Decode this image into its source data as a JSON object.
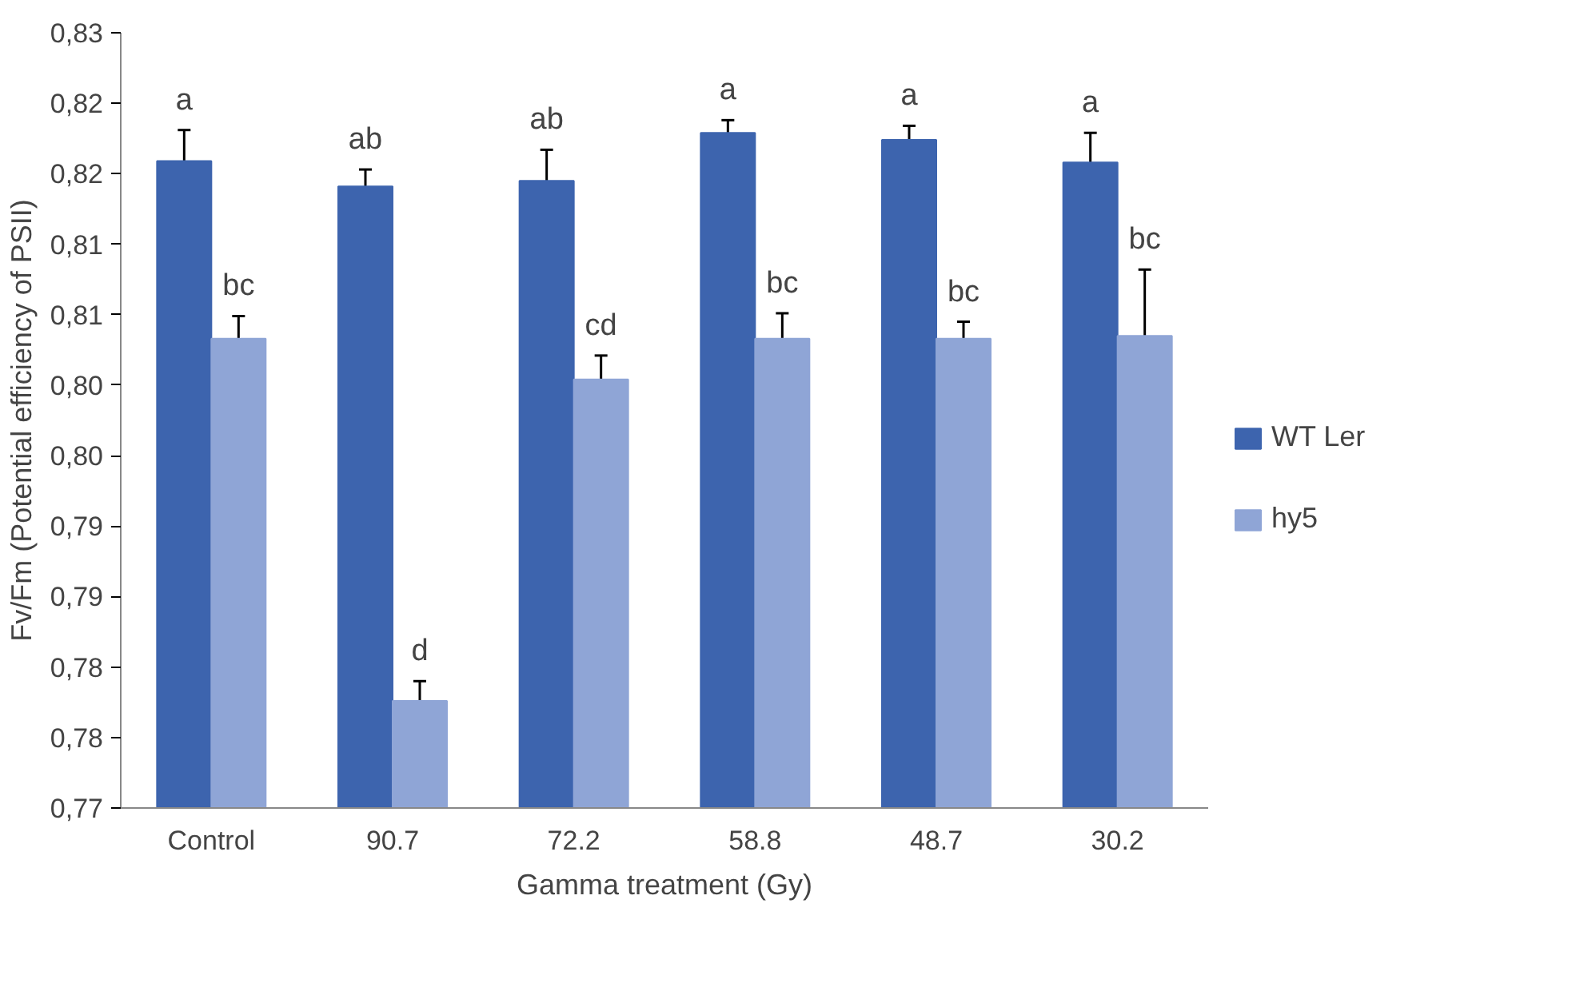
{
  "chart_data": {
    "type": "bar",
    "xlabel": "Gamma treatment (Gy)",
    "ylabel": "Fv/Fm (Potential efficiency of PSII)",
    "categories": [
      "Control",
      "90.7",
      "72.2",
      "58.8",
      "48.7",
      "30.2"
    ],
    "series": [
      {
        "name": "WT Ler",
        "color": "#3d64ae",
        "values": [
          0.8159,
          0.8141,
          0.8145,
          0.8179,
          0.8174,
          0.8158
        ],
        "errors": [
          0.0022,
          0.0012,
          0.0022,
          0.0009,
          0.001,
          0.0021
        ]
      },
      {
        "name": "hy5",
        "color": "#8fa5d6",
        "values": [
          0.8033,
          0.7776,
          0.8004,
          0.8033,
          0.8033,
          0.8035
        ],
        "errors": [
          0.0016,
          0.0014,
          0.0017,
          0.0018,
          0.0012,
          0.0047
        ]
      }
    ],
    "ylim": [
      0.77,
      0.825
    ],
    "yticks": [
      {
        "value": 0.77,
        "label": "0,77"
      },
      {
        "value": 0.775,
        "label": "0,78"
      },
      {
        "value": 0.78,
        "label": "0,78"
      },
      {
        "value": 0.785,
        "label": "0,79"
      },
      {
        "value": 0.79,
        "label": "0,79"
      },
      {
        "value": 0.795,
        "label": "0,80"
      },
      {
        "value": 0.8,
        "label": "0,80"
      },
      {
        "value": 0.805,
        "label": "0,81"
      },
      {
        "value": 0.81,
        "label": "0,81"
      },
      {
        "value": 0.815,
        "label": "0,82"
      },
      {
        "value": 0.82,
        "label": "0,82"
      },
      {
        "value": 0.825,
        "label": "0,83"
      }
    ],
    "annotations": [
      "a",
      "bc",
      "ab",
      "d",
      "ab",
      "cd",
      "a",
      "bc",
      "a",
      "bc",
      "a",
      "bc"
    ],
    "legend": "right",
    "grid": false
  }
}
